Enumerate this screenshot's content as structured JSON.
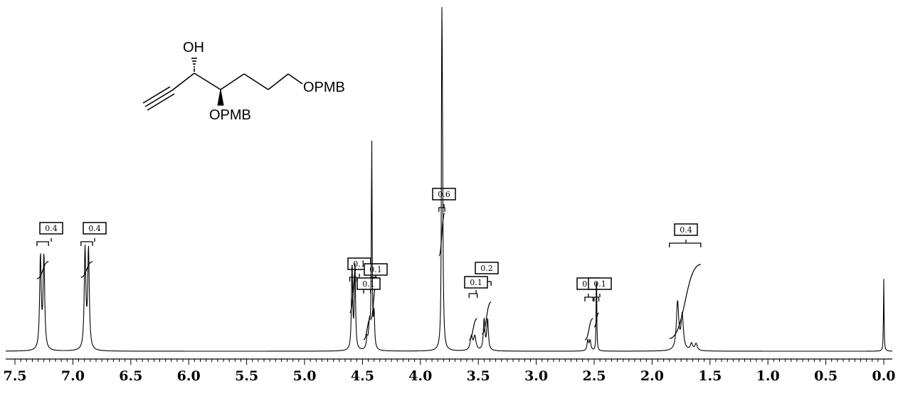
{
  "chart_data": {
    "type": "line",
    "title": "",
    "xlabel": "",
    "ylabel": "",
    "x_axis": {
      "min": 0.0,
      "max": 7.5,
      "reversed": true,
      "major_ticks": [
        7.5,
        7.0,
        6.5,
        6.0,
        5.5,
        5.0,
        4.5,
        4.0,
        3.5,
        3.0,
        2.5,
        2.0,
        1.5,
        1.0,
        0.5,
        0.0
      ],
      "tick_labels": [
        "7.5",
        "7.0",
        "6.5",
        "6.0",
        "5.5",
        "5.0",
        "4.5",
        "4.0",
        "3.5",
        "3.0",
        "2.5",
        "2.0",
        "1.5",
        "1.0",
        "0.5",
        "0.0"
      ]
    },
    "ylim": [
      0,
      1.0
    ],
    "peaks": [
      {
        "ppm": 7.28,
        "height": 0.27,
        "width": 0.008
      },
      {
        "ppm": 7.25,
        "height": 0.27,
        "width": 0.008
      },
      {
        "ppm": 6.895,
        "height": 0.29,
        "width": 0.008
      },
      {
        "ppm": 6.865,
        "height": 0.29,
        "width": 0.008
      },
      {
        "ppm": 4.59,
        "height": 0.25,
        "width": 0.006
      },
      {
        "ppm": 4.565,
        "height": 0.25,
        "width": 0.006
      },
      {
        "ppm": 4.46,
        "height": 0.03,
        "width": 0.008
      },
      {
        "ppm": 4.44,
        "height": 0.07,
        "width": 0.008
      },
      {
        "ppm": 4.42,
        "height": 0.6,
        "width": 0.004
      },
      {
        "ppm": 4.4,
        "height": 0.1,
        "width": 0.006
      },
      {
        "ppm": 3.815,
        "height": 1.0,
        "width": 0.003
      },
      {
        "ppm": 3.81,
        "height": 0.5,
        "width": 0.006
      },
      {
        "ppm": 3.56,
        "height": 0.04,
        "width": 0.012
      },
      {
        "ppm": 3.53,
        "height": 0.04,
        "width": 0.012
      },
      {
        "ppm": 3.45,
        "height": 0.09,
        "width": 0.008
      },
      {
        "ppm": 3.42,
        "height": 0.09,
        "width": 0.008
      },
      {
        "ppm": 2.555,
        "height": 0.03,
        "width": 0.008
      },
      {
        "ppm": 2.535,
        "height": 0.03,
        "width": 0.008
      },
      {
        "ppm": 2.48,
        "height": 0.25,
        "width": 0.003
      },
      {
        "ppm": 1.78,
        "height": 0.14,
        "width": 0.012
      },
      {
        "ppm": 1.74,
        "height": 0.1,
        "width": 0.012
      },
      {
        "ppm": 1.66,
        "height": 0.02,
        "width": 0.012
      },
      {
        "ppm": 1.62,
        "height": 0.02,
        "width": 0.012
      },
      {
        "ppm": 0.0,
        "height": 0.21,
        "width": 0.003
      }
    ],
    "integrals": [
      {
        "label": "0.4",
        "from": 7.31,
        "to": 7.21
      },
      {
        "label": "0.4",
        "from": 6.93,
        "to": 6.83
      },
      {
        "label": "0.1",
        "from": 4.61,
        "to": 4.55
      },
      {
        "label": "0.1",
        "from": 4.49,
        "to": 4.43
      },
      {
        "label": "0.1",
        "from": 4.43,
        "to": 4.38
      },
      {
        "label": "0.6",
        "from": 3.84,
        "to": 3.79
      },
      {
        "label": "0.1",
        "from": 3.58,
        "to": 3.51
      },
      {
        "label": "0.2",
        "from": 3.47,
        "to": 3.39
      },
      {
        "label": "0.0",
        "from": 2.58,
        "to": 2.51
      },
      {
        "label": "0.1",
        "from": 2.5,
        "to": 2.46
      },
      {
        "label": "0.4",
        "from": 1.85,
        "to": 1.58
      }
    ],
    "molecule": {
      "labels": [
        "OH",
        "OPMB",
        "OPMB"
      ]
    }
  }
}
